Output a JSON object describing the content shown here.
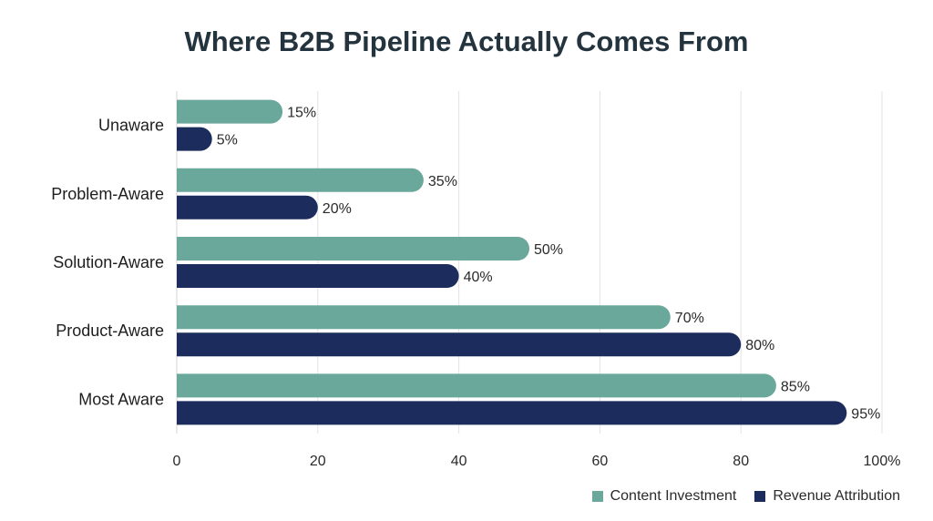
{
  "chart_data": {
    "type": "bar",
    "orientation": "horizontal",
    "title": "Where B2B Pipeline Actually Comes From",
    "categories": [
      "Unaware",
      "Problem-Aware",
      "Solution-Aware",
      "Product-Aware",
      "Most Aware"
    ],
    "series": [
      {
        "name": "Content Investment",
        "values": [
          15,
          35,
          50,
          70,
          85
        ],
        "color": "#6aa89c"
      },
      {
        "name": "Revenue Attribution",
        "values": [
          5,
          20,
          40,
          80,
          95
        ],
        "color": "#1c2c5c"
      }
    ],
    "value_labels": [
      [
        "15%",
        "35%",
        "50%",
        "70%",
        "85%"
      ],
      [
        "5%",
        "20%",
        "40%",
        "80%",
        "95%"
      ]
    ],
    "xlim": [
      0,
      100
    ],
    "x_ticks": [
      0,
      20,
      40,
      60,
      80,
      100
    ],
    "x_tick_labels": [
      "0",
      "20",
      "40",
      "60",
      "80",
      "100%"
    ],
    "xlabel": "",
    "ylabel": "",
    "grid": true,
    "legend_position": "bottom-right"
  }
}
